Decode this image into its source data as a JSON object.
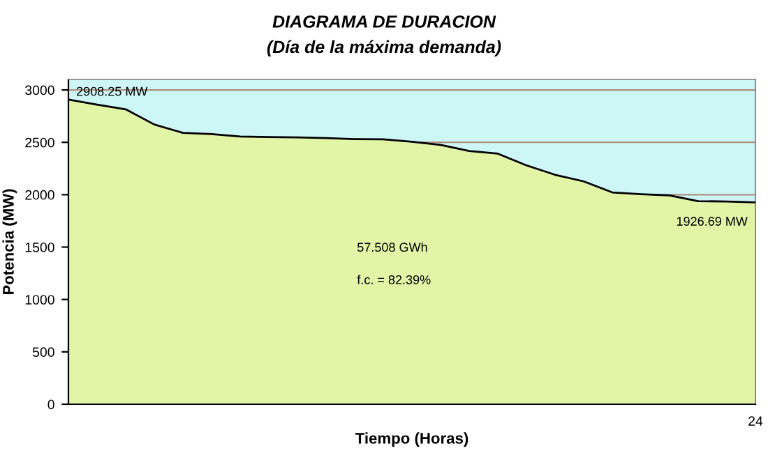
{
  "chart_data": {
    "type": "area",
    "title": "DIAGRAMA DE DURACION",
    "subtitle": "(Día de la máxima demanda)",
    "xlabel": "Tiempo (Horas)",
    "ylabel": "Potencia (MW)",
    "categories": [
      null,
      null,
      null,
      null,
      null,
      null,
      null,
      null,
      null,
      null,
      null,
      null,
      null,
      null,
      null,
      null,
      null,
      null,
      null,
      null,
      null,
      null,
      null,
      null,
      "24"
    ],
    "series": [
      {
        "color": "#e2f5a6",
        "values": [
          2908.25,
          2860,
          2815,
          2670,
          2590,
          2578,
          2555,
          2551,
          2547,
          2540,
          2531,
          2528,
          2505,
          2475,
          2418,
          2392,
          2280,
          2190,
          2127,
          2022,
          2005,
          1993,
          1939,
          1935,
          1926.69
        ]
      }
    ],
    "ylim": [
      0,
      3100
    ],
    "yticks": [
      0,
      500,
      1000,
      1500,
      2000,
      2500,
      3000
    ],
    "grid": "y",
    "annotations": [
      {
        "text": "2908.25 MW",
        "y": 2908.25
      },
      {
        "text": "1926.69 MW",
        "x": "24",
        "y": 1926.69
      },
      "57.508 GWh",
      "f.c. = 82.39%"
    ]
  }
}
